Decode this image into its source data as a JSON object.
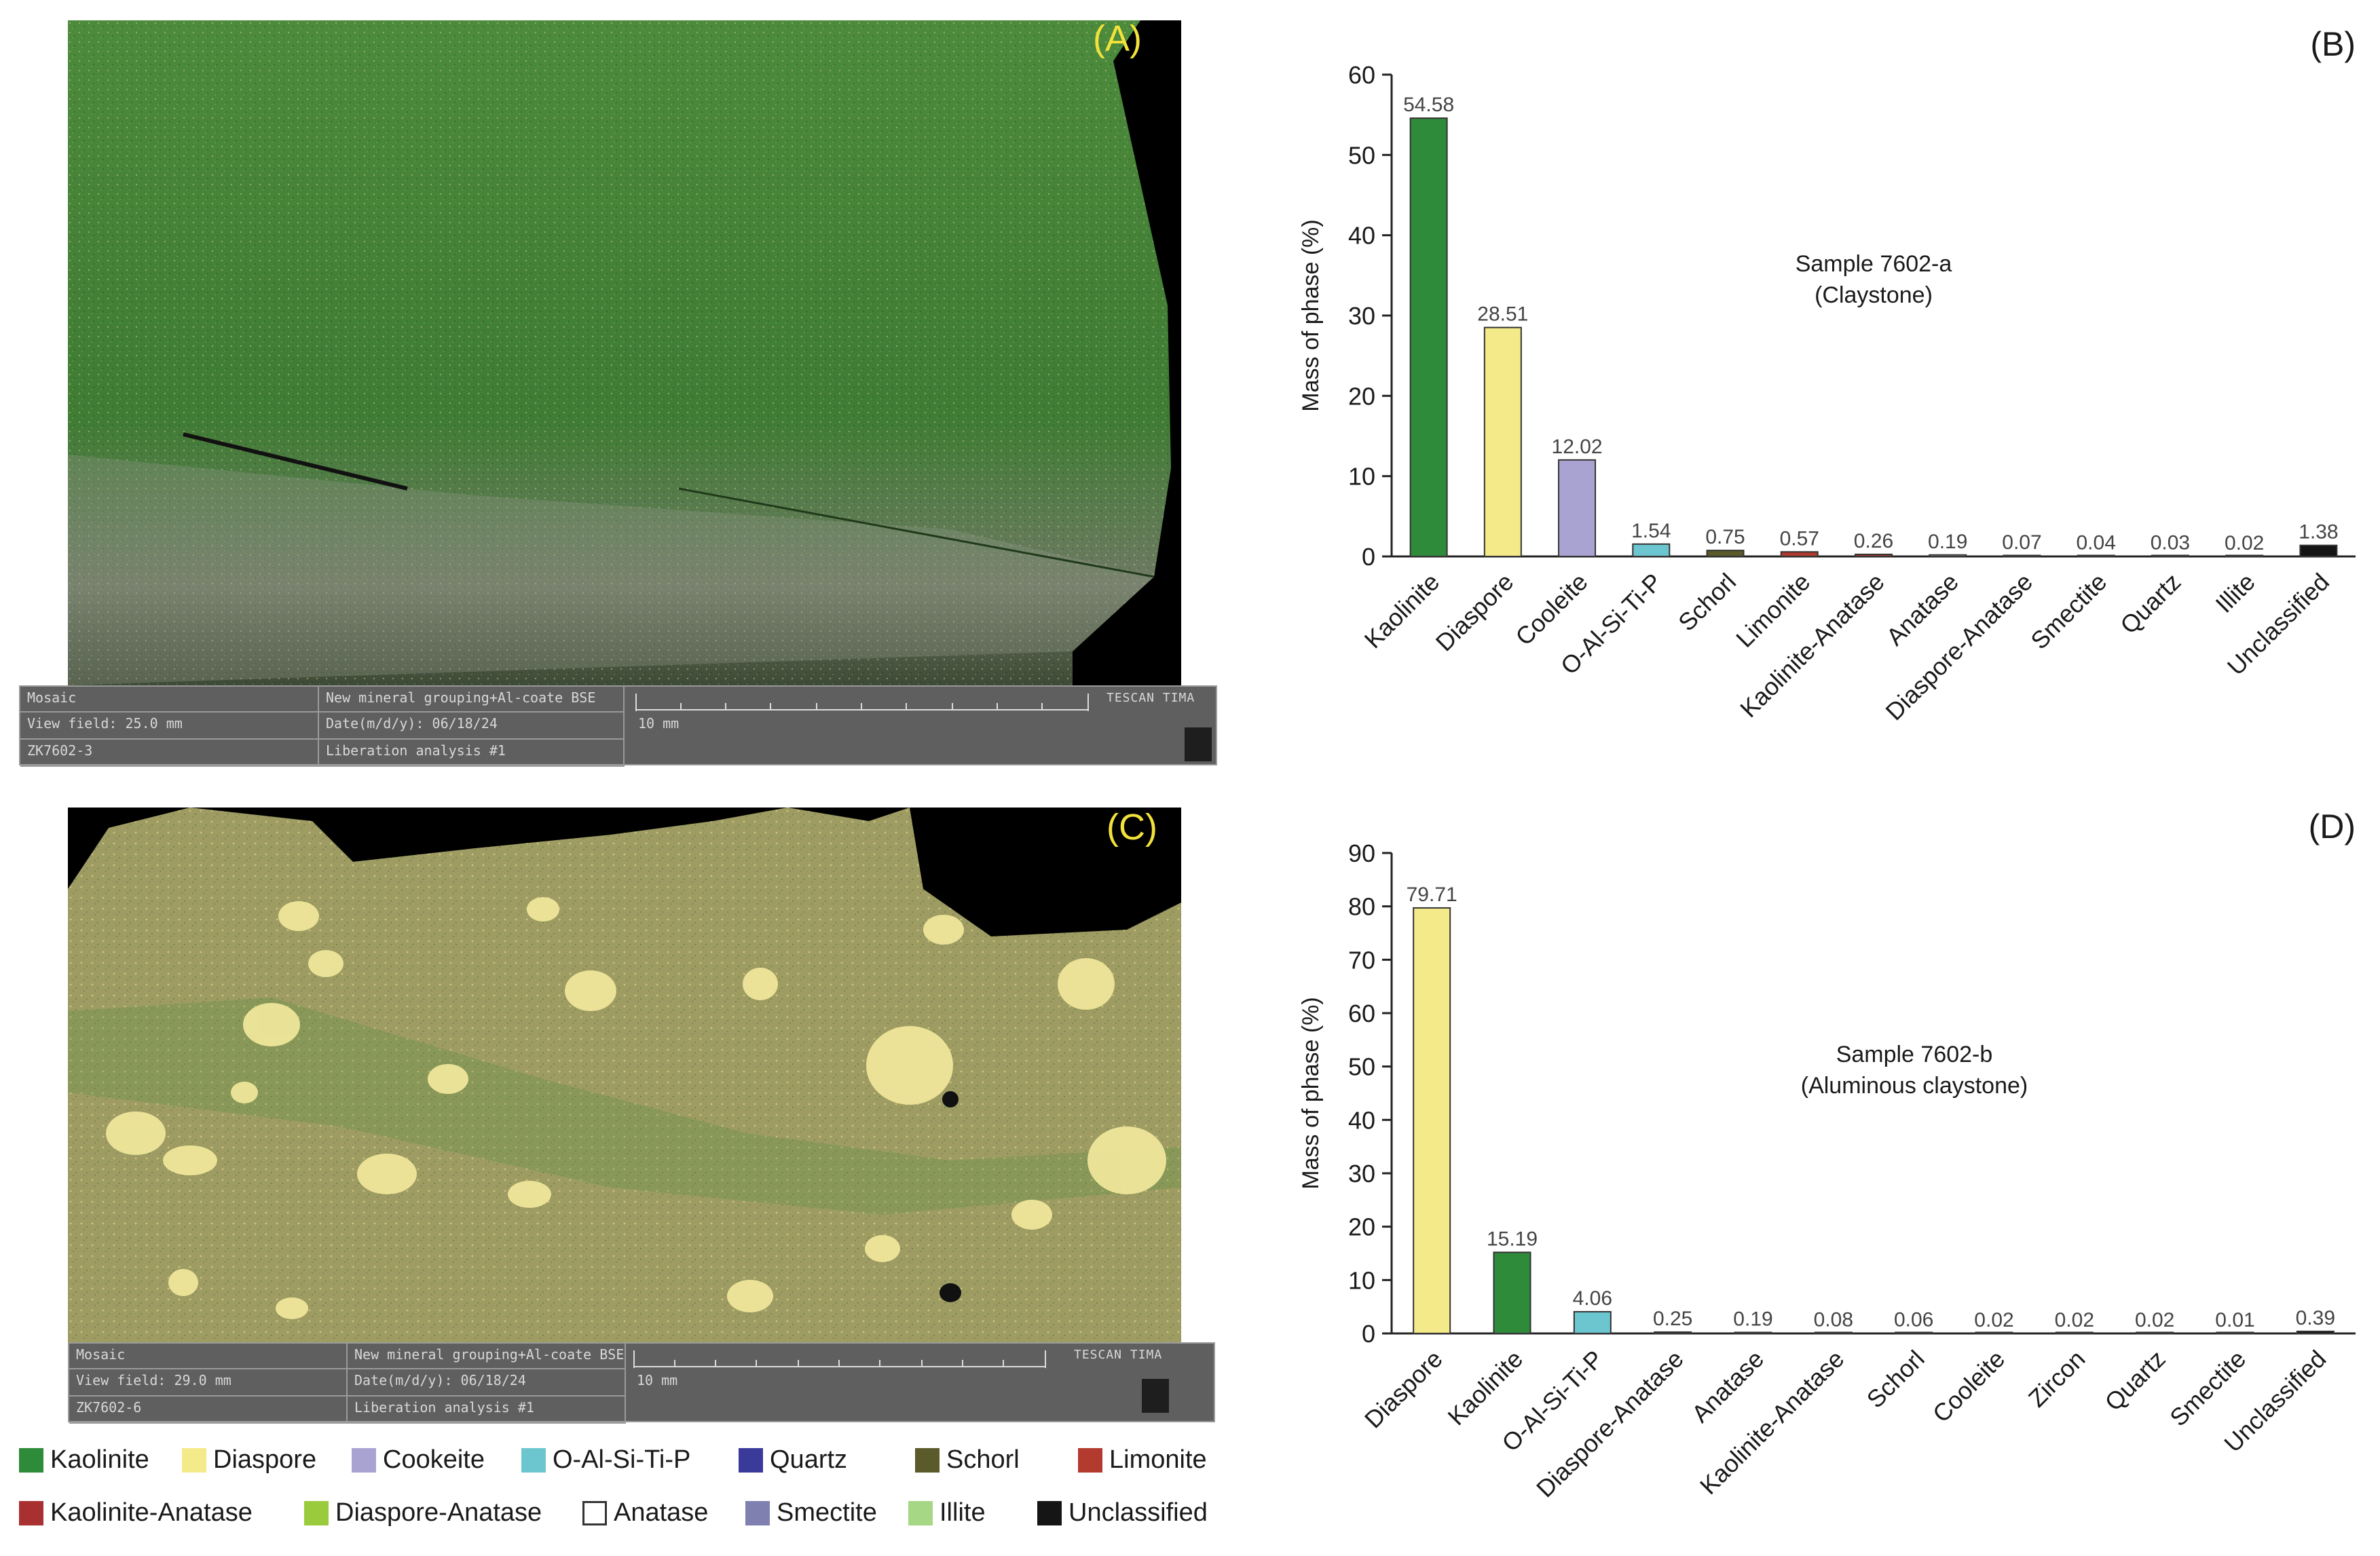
{
  "panels": {
    "a": {
      "letter": "(A)",
      "mosaic_label": "Mosaic",
      "view_field": "View field: 25.0 mm",
      "sample_id": "ZK7602-3",
      "grouping": "New mineral grouping+Al-coate BSE",
      "date": "Date(m/d/y): 06/18/24",
      "analysis": "Liberation analysis #1",
      "scale": "10 mm",
      "brand": "TESCAN TIMA"
    },
    "c": {
      "letter": "(C)",
      "mosaic_label": "Mosaic",
      "view_field": "View field: 29.0 mm",
      "sample_id": "ZK7602-6",
      "grouping": "New mineral grouping+Al-coate BSE",
      "date": "Date(m/d/y): 06/18/24",
      "analysis": "Liberation analysis #1",
      "scale": "10 mm",
      "brand": "TESCAN TIMA"
    }
  },
  "chart_data": [
    {
      "type": "bar",
      "panel_label": "(B)",
      "annotation_line1": "Sample 7602-a",
      "annotation_line2": "(Claystone)",
      "ylabel": "Mass of phase (%)",
      "ylim": [
        0,
        60
      ],
      "yticks": [
        0,
        10,
        20,
        30,
        40,
        50,
        60
      ],
      "categories": [
        "Kaolinite",
        "Diaspore",
        "Cooleite",
        "O-Al-Si-Ti-P",
        "Schorl",
        "Limonite",
        "Kaolinite-Anatase",
        "Anatase",
        "Diaspore-Anatase",
        "Smectite",
        "Quartz",
        "Illite",
        "Unclassified"
      ],
      "values": [
        54.58,
        28.51,
        12.02,
        1.54,
        0.75,
        0.57,
        0.26,
        0.19,
        0.07,
        0.04,
        0.03,
        0.02,
        1.38
      ],
      "labels": [
        "54.58",
        "28.51",
        "12.02",
        "1.54",
        "0.75",
        "0.57",
        "0.26",
        "0.19",
        "0.07",
        "0.04",
        "0.03",
        "0.02",
        "1.38"
      ],
      "colors": [
        "#2e8b3a",
        "#f5ea8a",
        "#a9a3d2",
        "#6cc6d0",
        "#5a5a2a",
        "#b23a2e",
        "#b23a2e",
        "#ffffff",
        "#9acb3c",
        "#8080b0",
        "#3a3a9a",
        "#a6d785",
        "#151515"
      ]
    },
    {
      "type": "bar",
      "panel_label": "(D)",
      "annotation_line1": "Sample 7602-b",
      "annotation_line2": "(Aluminous claystone)",
      "ylabel": "Mass of phase (%)",
      "ylim": [
        0,
        90
      ],
      "yticks": [
        0,
        10,
        20,
        30,
        40,
        50,
        60,
        70,
        80,
        90
      ],
      "categories": [
        "Diaspore",
        "Kaolinite",
        "O-Al-Si-Ti-P",
        "Diaspore-Anatase",
        "Anatase",
        "Kaolinite-Anatase",
        "Schorl",
        "Cooleite",
        "Zircon",
        "Quartz",
        "Smectite",
        "Unclassified"
      ],
      "values": [
        79.71,
        15.19,
        4.06,
        0.25,
        0.19,
        0.08,
        0.06,
        0.02,
        0.02,
        0.02,
        0.01,
        0.39
      ],
      "labels": [
        "79.71",
        "15.19",
        "4.06",
        "0.25",
        "0.19",
        "0.08",
        "0.06",
        "0.02",
        "0.02",
        "0.02",
        "0.01",
        "0.39"
      ],
      "colors": [
        "#f5ea8a",
        "#2e8b3a",
        "#6cc6d0",
        "#9acb3c",
        "#ffffff",
        "#b23a2e",
        "#5a5a2a",
        "#a9a3d2",
        "#cccccc",
        "#3a3a9a",
        "#8080b0",
        "#151515"
      ]
    }
  ],
  "legend": [
    {
      "label": "Kaolinite",
      "color": "#2e8b3a"
    },
    {
      "label": "Diaspore",
      "color": "#f5ea8a"
    },
    {
      "label": "Cookeite",
      "color": "#a9a3d2"
    },
    {
      "label": "O-Al-Si-Ti-P",
      "color": "#6cc6d0"
    },
    {
      "label": "Quartz",
      "color": "#3a3a9a"
    },
    {
      "label": "Schorl",
      "color": "#5a5a2a"
    },
    {
      "label": "Limonite",
      "color": "#b23a2e"
    },
    {
      "label": "Kaolinite-Anatase",
      "color": "#a83030"
    },
    {
      "label": "Diaspore-Anatase",
      "color": "#9acb3c"
    },
    {
      "label": "Anatase",
      "color": "#ffffff"
    },
    {
      "label": "Smectite",
      "color": "#8080b0"
    },
    {
      "label": "Illite",
      "color": "#a6d785"
    },
    {
      "label": "Unclassified",
      "color": "#151515"
    }
  ]
}
